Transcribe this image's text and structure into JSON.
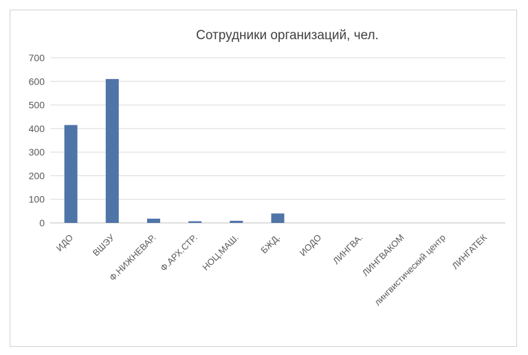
{
  "chart_data": {
    "type": "bar",
    "title": "Сотрудники организаций, чел.",
    "xlabel": "",
    "ylabel": "",
    "categories": [
      "ИДО",
      "ВШЭУ",
      "Ф.НИЖНЕВАР.",
      "Ф.АРХ.СТР.",
      "НОЦ.МАШ.",
      "БЖД.",
      "ИОДО",
      "ЛИНГВА.",
      "ЛИНГВАКОМ",
      "лингвистический центр",
      "ЛИНГАТЕК"
    ],
    "values": [
      415,
      610,
      18,
      7,
      9,
      40,
      0,
      0,
      0,
      0,
      0
    ],
    "ylim": [
      0,
      700
    ],
    "yticks": [
      0,
      100,
      200,
      300,
      400,
      500,
      600,
      700
    ],
    "grid": true,
    "legend": "none",
    "colors": {
      "bar": "#4f74a8",
      "grid": "#d9d9d9",
      "text": "#595959",
      "title": "#404040"
    }
  }
}
